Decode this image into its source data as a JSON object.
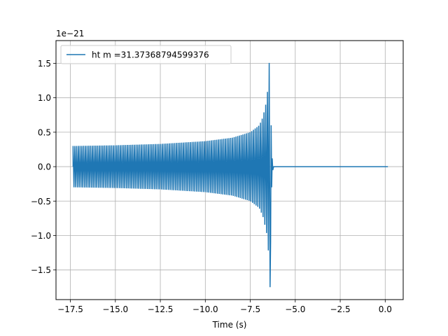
{
  "chart_data": {
    "type": "line",
    "title": "",
    "xlabel": "Time (s)",
    "ylabel": "",
    "y_scale_text": "1e−21",
    "xlim": [
      -18.3,
      1.0
    ],
    "ylim": [
      -1.93,
      1.83
    ],
    "x_ticks": [
      -17.5,
      -15.0,
      -12.5,
      -10.0,
      -7.5,
      -5.0,
      -2.5,
      0.0
    ],
    "x_tick_labels": [
      "−17.5",
      "−15.0",
      "−12.5",
      "−10.0",
      "−7.5",
      "−5.0",
      "−2.5",
      "0.0"
    ],
    "y_ticks": [
      -1.5,
      -1.0,
      -0.5,
      0.0,
      0.5,
      1.0,
      1.5
    ],
    "y_tick_labels": [
      "−1.5",
      "−1.0",
      "−0.5",
      "0.0",
      "0.5",
      "1.0",
      "1.5"
    ],
    "grid": true,
    "legend_position": "top-left",
    "series": [
      {
        "name": "ht m =31.37368794599376",
        "color": "#1f77b4",
        "start_time": -17.35,
        "merger_time": -6.4,
        "end_time": 0.15,
        "envelope": {
          "x": [
            -17.35,
            -15.0,
            -12.5,
            -10.0,
            -8.5,
            -7.5,
            -7.0,
            -6.8,
            -6.6,
            -6.5,
            -6.45,
            -6.42,
            -6.4
          ],
          "upper": [
            0.3,
            0.31,
            0.33,
            0.37,
            0.42,
            0.5,
            0.6,
            0.72,
            0.95,
            1.2,
            1.5,
            1.65,
            1.65
          ],
          "lower": [
            -0.3,
            -0.31,
            -0.33,
            -0.37,
            -0.42,
            -0.5,
            -0.6,
            -0.72,
            -0.95,
            -1.2,
            -1.5,
            -1.75,
            -1.75
          ]
        },
        "post_merger_value": 0.0
      }
    ]
  }
}
